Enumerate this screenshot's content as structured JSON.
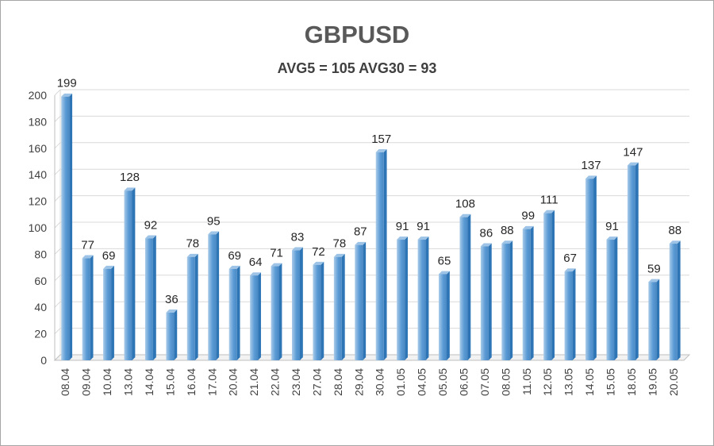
{
  "chart_data": {
    "type": "bar",
    "title": "GBPUSD",
    "subtitle": "AVG5 = 105 AVG30 = 93",
    "categories": [
      "08.04",
      "09.04",
      "10.04",
      "13.04",
      "14.04",
      "15.04",
      "16.04",
      "17.04",
      "20.04",
      "21.04",
      "22.04",
      "23.04",
      "27.04",
      "28.04",
      "29.04",
      "30.04",
      "01.05",
      "04.05",
      "05.05",
      "06.05",
      "07.05",
      "08.05",
      "11.05",
      "12.05",
      "13.05",
      "14.05",
      "15.05",
      "18.05",
      "19.05",
      "20.05"
    ],
    "values": [
      199,
      77,
      69,
      128,
      92,
      36,
      78,
      95,
      69,
      64,
      71,
      83,
      72,
      78,
      87,
      157,
      91,
      91,
      65,
      108,
      86,
      88,
      99,
      111,
      67,
      137,
      91,
      147,
      59,
      88
    ],
    "ylim": [
      0,
      200
    ],
    "yticks": [
      0,
      20,
      40,
      60,
      80,
      100,
      120,
      140,
      160,
      180,
      200
    ],
    "grid": true,
    "legend": "none",
    "colors": {
      "bar_front": "#5b9bd5",
      "bar_light": "#9dc3e6",
      "bar_side": "#2e75b6",
      "grid": "#d9d9d9"
    }
  }
}
